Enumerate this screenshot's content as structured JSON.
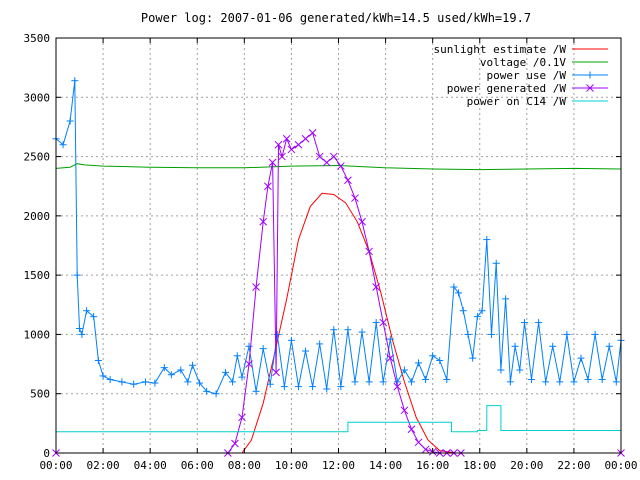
{
  "chart_data": {
    "type": "line",
    "title": "Power log: 2007-01-06 generated/kWh=14.5 used/kWh=19.7",
    "xlabel": "",
    "ylabel": "",
    "xlim": [
      0,
      24
    ],
    "ylim": [
      0,
      3500
    ],
    "x_ticks": [
      "00:00",
      "02:00",
      "04:00",
      "06:00",
      "08:00",
      "10:00",
      "12:00",
      "14:00",
      "16:00",
      "18:00",
      "20:00",
      "22:00",
      "00:00"
    ],
    "y_ticks": [
      "0",
      "500",
      "1000",
      "1500",
      "2000",
      "2500",
      "3000",
      "3500"
    ],
    "grid": true,
    "legend_position": "top-right",
    "series": [
      {
        "name": "sunlight estimate /W",
        "color": "#ff0000",
        "marker": "none",
        "x": [
          0,
          7.9,
          8.3,
          8.8,
          9.3,
          9.8,
          10.3,
          10.8,
          11.3,
          11.8,
          12.3,
          12.8,
          13.3,
          13.8,
          14.3,
          14.8,
          15.3,
          15.8,
          16.3,
          17.0,
          24
        ],
        "y": [
          0,
          0,
          110,
          420,
          850,
          1300,
          1800,
          2080,
          2190,
          2180,
          2110,
          1950,
          1700,
          1350,
          950,
          600,
          300,
          110,
          20,
          0,
          0
        ]
      },
      {
        "name": "voltage /0.1V",
        "color": "#00a000",
        "marker": "none",
        "x": [
          0,
          0.6,
          0.9,
          1.2,
          2,
          4,
          6,
          8,
          10,
          12,
          14,
          16,
          18,
          20,
          22,
          24
        ],
        "y": [
          2400,
          2410,
          2440,
          2430,
          2420,
          2410,
          2405,
          2405,
          2420,
          2425,
          2405,
          2395,
          2390,
          2395,
          2400,
          2395
        ]
      },
      {
        "name": "power use /W",
        "color": "#0080ff",
        "marker": "plus",
        "x": [
          0,
          0.3,
          0.6,
          0.8,
          0.9,
          1.0,
          1.1,
          1.3,
          1.6,
          1.8,
          2.0,
          2.3,
          2.8,
          3.3,
          3.8,
          4.2,
          4.6,
          4.9,
          5.3,
          5.6,
          5.8,
          6.1,
          6.4,
          6.8,
          7.2,
          7.5,
          7.7,
          7.9,
          8.2,
          8.5,
          8.8,
          9.1,
          9.4,
          9.7,
          10.0,
          10.3,
          10.6,
          10.9,
          11.2,
          11.5,
          11.8,
          12.1,
          12.4,
          12.7,
          13.0,
          13.3,
          13.6,
          13.9,
          14.2,
          14.5,
          14.8,
          15.1,
          15.4,
          15.7,
          16.0,
          16.3,
          16.6,
          16.9,
          17.1,
          17.3,
          17.5,
          17.7,
          17.9,
          18.1,
          18.3,
          18.5,
          18.7,
          18.9,
          19.1,
          19.3,
          19.5,
          19.7,
          19.9,
          20.2,
          20.5,
          20.8,
          21.1,
          21.4,
          21.7,
          22.0,
          22.3,
          22.6,
          22.9,
          23.2,
          23.5,
          23.8,
          24
        ],
        "y": [
          2650,
          2600,
          2800,
          3140,
          1500,
          1050,
          1000,
          1200,
          1150,
          780,
          650,
          620,
          600,
          580,
          600,
          590,
          720,
          660,
          700,
          600,
          740,
          590,
          520,
          500,
          680,
          600,
          820,
          640,
          900,
          520,
          880,
          580,
          1000,
          560,
          950,
          560,
          860,
          560,
          920,
          540,
          1040,
          560,
          1040,
          600,
          1020,
          600,
          1100,
          600,
          960,
          600,
          700,
          600,
          760,
          620,
          820,
          780,
          620,
          1400,
          1350,
          1200,
          1000,
          800,
          1150,
          1200,
          1800,
          1000,
          1600,
          700,
          1300,
          600,
          900,
          700,
          1100,
          620,
          1100,
          600,
          900,
          600,
          1000,
          600,
          800,
          620,
          1000,
          620,
          900,
          600,
          950
        ]
      },
      {
        "name": "power generated /W",
        "color": "#a000ff",
        "marker": "x",
        "x": [
          0,
          7.3,
          7.6,
          7.9,
          8.2,
          8.5,
          8.8,
          9.0,
          9.2,
          9.35,
          9.45,
          9.6,
          9.8,
          10.0,
          10.3,
          10.6,
          10.9,
          11.2,
          11.5,
          11.8,
          12.1,
          12.4,
          12.7,
          13.0,
          13.3,
          13.6,
          13.9,
          14.2,
          14.5,
          14.8,
          15.1,
          15.4,
          15.7,
          16.0,
          16.3,
          16.6,
          16.9,
          17.2,
          24
        ],
        "y": [
          0,
          0,
          80,
          300,
          750,
          1400,
          1950,
          2250,
          2450,
          680,
          2600,
          2500,
          2650,
          2560,
          2600,
          2650,
          2700,
          2500,
          2450,
          2500,
          2420,
          2300,
          2150,
          1950,
          1700,
          1400,
          1100,
          800,
          560,
          360,
          200,
          90,
          30,
          10,
          0,
          0,
          0,
          0,
          0
        ]
      },
      {
        "name": "power on C14 /W",
        "color": "#00d0d0",
        "marker": "none",
        "x": [
          0,
          12.4,
          12.4,
          16.8,
          16.8,
          17.9,
          17.9,
          18.3,
          18.3,
          18.9,
          18.9,
          24
        ],
        "y": [
          180,
          180,
          260,
          260,
          180,
          180,
          190,
          190,
          400,
          400,
          190,
          190
        ]
      }
    ]
  }
}
